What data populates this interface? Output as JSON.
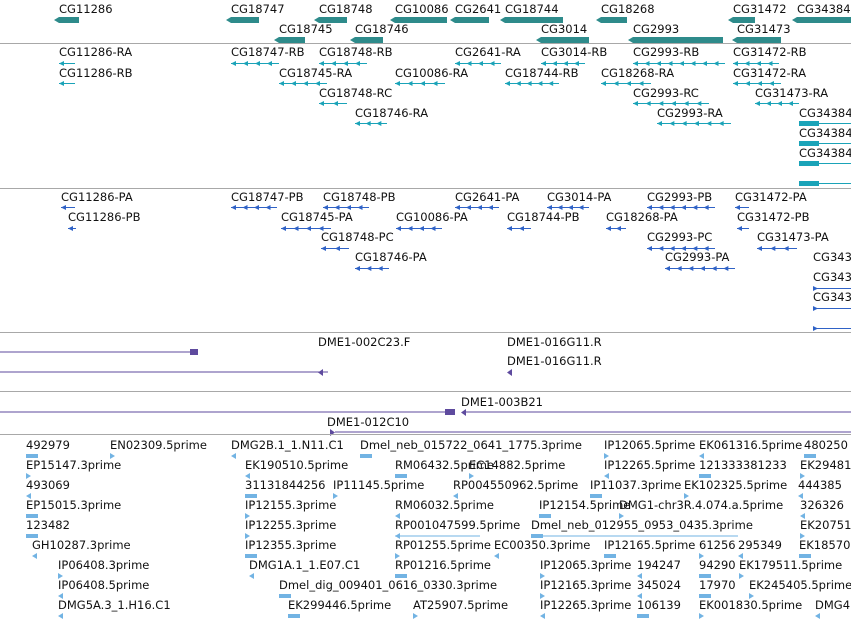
{
  "colors": {
    "gene": "#2e8b8b",
    "transcript": "#1aa3b8",
    "protein": "#2f62c6",
    "clone": "#5e4a9e",
    "est": "#72b3e3",
    "divider": "#a8a8a8"
  },
  "tracks": {
    "genes": [
      {
        "label": "CG11286"
      },
      {
        "label": "CG18747"
      },
      {
        "label": "CG18748"
      },
      {
        "label": "CG10086"
      },
      {
        "label": "CG2641"
      },
      {
        "label": "CG18744"
      },
      {
        "label": "CG18268"
      },
      {
        "label": "CG31472"
      },
      {
        "label": "CG34384"
      },
      {
        "label": "CG18745"
      },
      {
        "label": "CG18746"
      },
      {
        "label": "CG3014"
      },
      {
        "label": "CG2993"
      },
      {
        "label": "CG31473"
      }
    ],
    "transcripts": [
      {
        "label": "CG11286-RA"
      },
      {
        "label": "CG11286-RB"
      },
      {
        "label": "CG18747-RB"
      },
      {
        "label": "CG18748-RB"
      },
      {
        "label": "CG2641-RA"
      },
      {
        "label": "CG3014-RB"
      },
      {
        "label": "CG2993-RB"
      },
      {
        "label": "CG31472-RB"
      },
      {
        "label": "CG18745-RA"
      },
      {
        "label": "CG10086-RA"
      },
      {
        "label": "CG18744-RB"
      },
      {
        "label": "CG18268-RA"
      },
      {
        "label": "CG31472-RA"
      },
      {
        "label": "CG18748-RC"
      },
      {
        "label": "CG2993-RC"
      },
      {
        "label": "CG31473-RA"
      },
      {
        "label": "CG18746-RA"
      },
      {
        "label": "CG2993-RA"
      },
      {
        "label": "CG34384"
      },
      {
        "label": "CG34384"
      },
      {
        "label": "CG34384"
      }
    ],
    "proteins": [
      {
        "label": "CG11286-PA"
      },
      {
        "label": "CG11286-PB"
      },
      {
        "label": "CG18747-PB"
      },
      {
        "label": "CG18748-PB"
      },
      {
        "label": "CG2641-PA"
      },
      {
        "label": "CG3014-PA"
      },
      {
        "label": "CG2993-PB"
      },
      {
        "label": "CG31472-PA"
      },
      {
        "label": "CG18745-PA"
      },
      {
        "label": "CG10086-PA"
      },
      {
        "label": "CG18744-PB"
      },
      {
        "label": "CG18268-PA"
      },
      {
        "label": "CG31472-PB"
      },
      {
        "label": "CG18748-PC"
      },
      {
        "label": "CG2993-PC"
      },
      {
        "label": "CG31473-PA"
      },
      {
        "label": "CG18746-PA"
      },
      {
        "label": "CG2993-PA"
      },
      {
        "label": "CG343"
      },
      {
        "label": "CG343"
      },
      {
        "label": "CG343"
      }
    ],
    "clones": [
      {
        "label": "DME1-002C23.F"
      },
      {
        "label": "DME1-016G11.R"
      },
      {
        "label": "DME1-016G11.R"
      },
      {
        "label": "DME1-003B21"
      },
      {
        "label": "DME1-012C10"
      }
    ],
    "ests": [
      {
        "label": "492979"
      },
      {
        "label": "EN02309.5prime"
      },
      {
        "label": "DMG2B.1_1.N11.C1"
      },
      {
        "label": "Dmel_neb_015722_0641_1775.3prime"
      },
      {
        "label": "IP12065.5prime"
      },
      {
        "label": "EK061316.5prime"
      },
      {
        "label": "480250"
      },
      {
        "label": "EP15147.3prime"
      },
      {
        "label": "EK190510.5prime"
      },
      {
        "label": "RM06432.5prime"
      },
      {
        "label": "EC14882.5prime"
      },
      {
        "label": "IP12265.5prime"
      },
      {
        "label": "121333381233"
      },
      {
        "label": "EK29481"
      },
      {
        "label": "493069"
      },
      {
        "label": "31131844256"
      },
      {
        "label": "IP11145.5prime"
      },
      {
        "label": "RP004550962.5prime"
      },
      {
        "label": "IP11037.3prime"
      },
      {
        "label": "EK102325.5prime"
      },
      {
        "label": "444385"
      },
      {
        "label": "EP15015.3prime"
      },
      {
        "label": "IP12155.3prime"
      },
      {
        "label": "RM06032.5prime"
      },
      {
        "label": "IP12154.5prime"
      },
      {
        "label": "DMG1-chr3R.4.074.a.5prime"
      },
      {
        "label": "326326"
      },
      {
        "label": "123482"
      },
      {
        "label": "IP12255.3prime"
      },
      {
        "label": "RP001047599.5prime"
      },
      {
        "label": "Dmel_neb_012955_0953_0435.3prime"
      },
      {
        "label": "EK20751"
      },
      {
        "label": "GH10287.3prime"
      },
      {
        "label": "IP12355.3prime"
      },
      {
        "label": "RP01255.5prime"
      },
      {
        "label": "EC00350.3prime"
      },
      {
        "label": "IP12165.5prime"
      },
      {
        "label": "61256"
      },
      {
        "label": "295349"
      },
      {
        "label": "EK18570"
      },
      {
        "label": "IP06408.3prime"
      },
      {
        "label": "DMG1A.1_1.E07.C1"
      },
      {
        "label": "RP01216.5prime"
      },
      {
        "label": "IP12065.3prime"
      },
      {
        "label": "194247"
      },
      {
        "label": "94290"
      },
      {
        "label": "EK179511.5prime"
      },
      {
        "label": "IP06408.5prime"
      },
      {
        "label": "Dmel_dig_009401_0616_0330.3prime"
      },
      {
        "label": "IP12165.3prime"
      },
      {
        "label": "345024"
      },
      {
        "label": "17970"
      },
      {
        "label": "EK245405.5prime"
      },
      {
        "label": "DMG5A.3_1.H16.C1"
      },
      {
        "label": "EK299446.5prime"
      },
      {
        "label": "AT25907.5prime"
      },
      {
        "label": "IP12265.3prime"
      },
      {
        "label": "106139"
      },
      {
        "label": "EK001830.5prime"
      },
      {
        "label": "DMG4"
      }
    ]
  }
}
